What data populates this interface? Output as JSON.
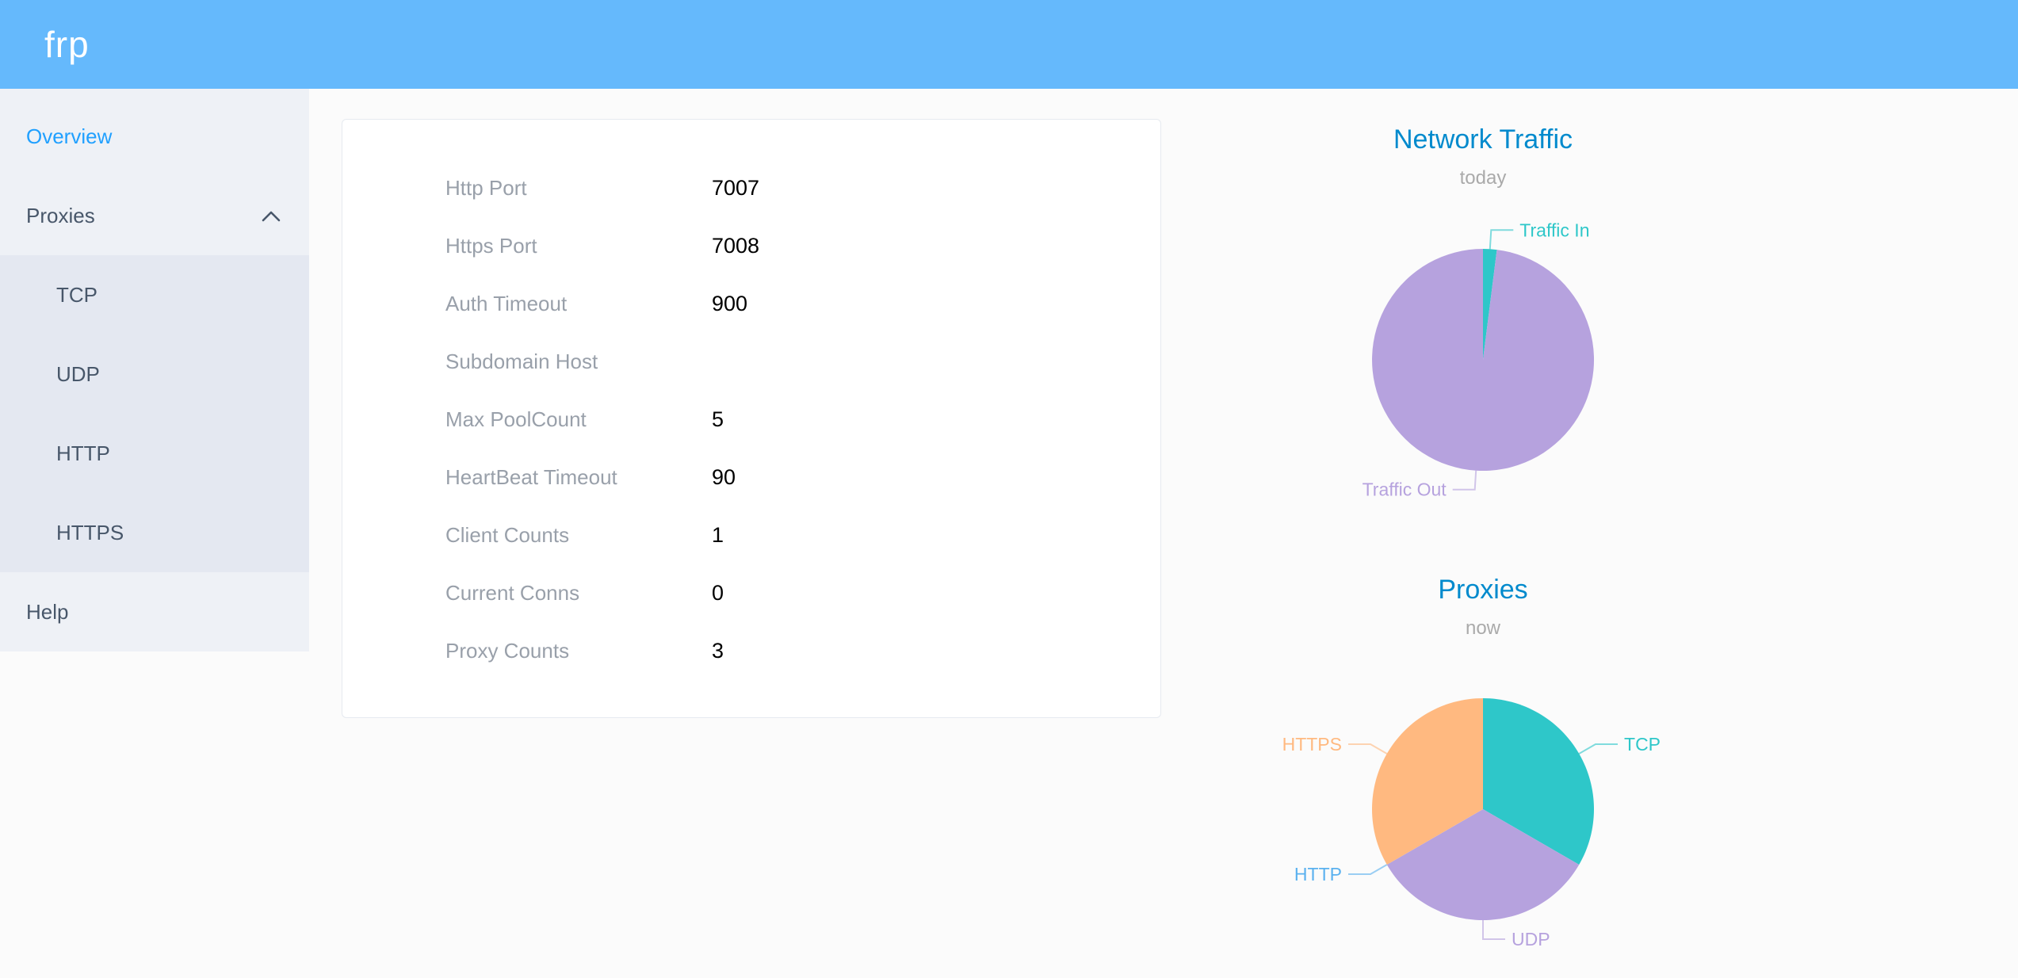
{
  "header": {
    "logo": "frp"
  },
  "sidebar": {
    "overview_label": "Overview",
    "proxies_label": "Proxies",
    "proxy_types": [
      "TCP",
      "UDP",
      "HTTP",
      "HTTPS"
    ],
    "help_label": "Help"
  },
  "overview": {
    "rows": [
      {
        "label": "Http Port",
        "value": "7007"
      },
      {
        "label": "Https Port",
        "value": "7008"
      },
      {
        "label": "Auth Timeout",
        "value": "900"
      },
      {
        "label": "Subdomain Host",
        "value": ""
      },
      {
        "label": "Max PoolCount",
        "value": "5"
      },
      {
        "label": "HeartBeat Timeout",
        "value": "90"
      },
      {
        "label": "Client Counts",
        "value": "1"
      },
      {
        "label": "Current Conns",
        "value": "0"
      },
      {
        "label": "Proxy Counts",
        "value": "3"
      }
    ]
  },
  "chart_data": [
    {
      "type": "pie",
      "title": "Network Traffic",
      "subtitle": "today",
      "legend_position": "none",
      "slices": [
        {
          "label": "Traffic In",
          "value": 2,
          "color": "#2ec7c9"
        },
        {
          "label": "Traffic Out",
          "value": 98,
          "color": "#b6a2de"
        }
      ]
    },
    {
      "type": "pie",
      "title": "Proxies",
      "subtitle": "now",
      "legend_position": "none",
      "slices": [
        {
          "label": "TCP",
          "value": 1,
          "color": "#2ec7c9"
        },
        {
          "label": "UDP",
          "value": 1,
          "color": "#b6a2de"
        },
        {
          "label": "HTTP",
          "value": 0,
          "color": "#5ab1ef"
        },
        {
          "label": "HTTPS",
          "value": 1,
          "color": "#ffb980"
        }
      ]
    }
  ],
  "colors": {
    "header_bg": "#65b9fc",
    "active_link": "#20a0ff",
    "chart_title": "#008acd",
    "sidebar_bg": "#eef1f6",
    "submenu_bg": "#e4e8f1"
  }
}
